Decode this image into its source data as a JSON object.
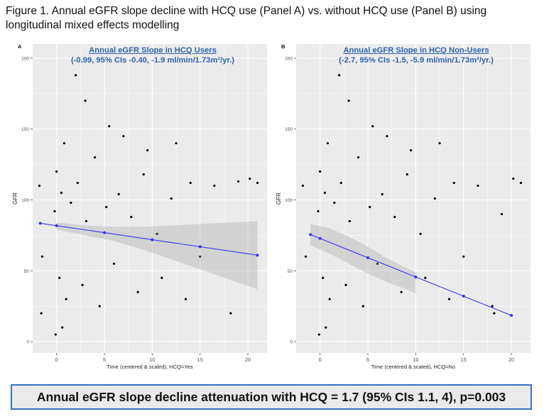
{
  "caption": "Figure 1. Annual eGFR slope decline with HCQ use (Panel A) vs. without HCQ use (Panel B) using longitudinal mixed effects modelling",
  "footer": "Annual eGFR slope decline attenuation with HCQ = 1.7 (95% CIs 1.1, 4), p=0.003",
  "colors": {
    "panel_bg": "#ebebeb",
    "grid": "#ffffff",
    "point": "#000000",
    "fit_line": "#3333ff",
    "ci_band": "#999999",
    "annotation": "#2c62b3",
    "footer_border": "#3b6fc2"
  },
  "chart_data": [
    {
      "type": "scatter",
      "panel_letter": "A",
      "annotation_line1": "Annual eGFR Slope in HCQ Users",
      "annotation_line2": "(-0.99, 95% CIs -0.40, -1.9 ml/min/1.73m²/yr.)",
      "xlabel": "Time (centered & scaled), HCQ=Yes",
      "ylabel": "GFR",
      "xlim": [
        -2.5,
        22
      ],
      "ylim": [
        -8,
        210
      ],
      "x_ticks": [
        0,
        5,
        10,
        15,
        20
      ],
      "y_ticks": [
        0,
        50,
        100,
        150,
        200
      ],
      "grid": true,
      "fit_line": {
        "x": [
          -1.7,
          21
        ],
        "y": [
          83.5,
          61.0
        ]
      },
      "fit_points": {
        "x": [
          -1.7,
          0,
          5,
          10,
          15,
          21
        ],
        "y": [
          83.5,
          81.8,
          76.9,
          71.9,
          67.0,
          61.0
        ]
      },
      "ci_band": {
        "x": [
          0,
          3,
          6,
          9,
          12,
          15,
          18,
          21
        ],
        "lower": [
          79,
          75,
          71,
          65,
          58,
          51,
          44,
          37
        ],
        "upper": [
          84,
          82,
          81,
          81,
          82,
          83,
          84,
          85
        ]
      },
      "scatter_points": [
        {
          "x": 0.0,
          "y": 120
        },
        {
          "x": 0.5,
          "y": 105
        },
        {
          "x": -0.2,
          "y": 92
        },
        {
          "x": 0.8,
          "y": 140
        },
        {
          "x": 1.5,
          "y": 98
        },
        {
          "x": 2.2,
          "y": 112
        },
        {
          "x": 3.1,
          "y": 85
        },
        {
          "x": 4.0,
          "y": 130
        },
        {
          "x": 5.2,
          "y": 95
        },
        {
          "x": 6.5,
          "y": 104
        },
        {
          "x": 7.8,
          "y": 88
        },
        {
          "x": 9.1,
          "y": 118
        },
        {
          "x": 10.5,
          "y": 76
        },
        {
          "x": 12.0,
          "y": 101
        },
        {
          "x": 14.0,
          "y": 112
        },
        {
          "x": 16.5,
          "y": 110
        },
        {
          "x": 18.2,
          "y": 20
        },
        {
          "x": 19.0,
          "y": 113
        },
        {
          "x": 20.2,
          "y": 115
        },
        {
          "x": 21.0,
          "y": 112
        },
        {
          "x": 0.3,
          "y": 45
        },
        {
          "x": 1.0,
          "y": 30
        },
        {
          "x": 2.7,
          "y": 40
        },
        {
          "x": 4.5,
          "y": 25
        },
        {
          "x": 6.0,
          "y": 55
        },
        {
          "x": 8.5,
          "y": 35
        },
        {
          "x": 11.0,
          "y": 45
        },
        {
          "x": 13.5,
          "y": 30
        },
        {
          "x": 0.6,
          "y": 10
        },
        {
          "x": -0.1,
          "y": 5
        },
        {
          "x": 2.0,
          "y": 188
        },
        {
          "x": 3.0,
          "y": 170
        },
        {
          "x": 5.5,
          "y": 152
        },
        {
          "x": 7.0,
          "y": 145
        },
        {
          "x": 9.5,
          "y": 135
        },
        {
          "x": 12.5,
          "y": 140
        },
        {
          "x": -1.8,
          "y": 110
        },
        {
          "x": -1.5,
          "y": 60
        },
        {
          "x": -1.6,
          "y": 20
        },
        {
          "x": 15.0,
          "y": 60
        }
      ]
    },
    {
      "type": "scatter",
      "panel_letter": "B",
      "annotation_line1": "Annual eGFR Slope in HCQ Non-Users",
      "annotation_line2": "(-2.7, 95% CIs -1.5, -5.9 ml/min/1.73m²/yr.)",
      "xlabel": "Time (centered & scaled), HCQ=No",
      "ylabel": "GFR",
      "xlim": [
        -2.5,
        22
      ],
      "ylim": [
        -8,
        210
      ],
      "x_ticks": [
        0,
        5,
        10,
        15,
        20
      ],
      "y_ticks": [
        0,
        50,
        100,
        150,
        200
      ],
      "grid": true,
      "fit_line": {
        "x": [
          -1.0,
          20
        ],
        "y": [
          75.5,
          18.5
        ]
      },
      "fit_points": {
        "x": [
          -1.0,
          0,
          5,
          10,
          15,
          20
        ],
        "y": [
          75.5,
          72.8,
          59.2,
          45.6,
          32.1,
          18.5
        ]
      },
      "ci_band": {
        "x": [
          -1,
          1,
          3,
          5,
          7,
          9,
          10
        ],
        "lower": [
          68,
          62,
          55,
          48,
          42,
          37,
          34
        ],
        "upper": [
          83,
          80,
          74,
          67,
          59,
          52,
          49
        ]
      },
      "scatter_points": [
        {
          "x": 0.0,
          "y": 120
        },
        {
          "x": 0.5,
          "y": 105
        },
        {
          "x": -0.2,
          "y": 92
        },
        {
          "x": 0.8,
          "y": 140
        },
        {
          "x": 1.5,
          "y": 98
        },
        {
          "x": 2.2,
          "y": 112
        },
        {
          "x": 3.1,
          "y": 85
        },
        {
          "x": 4.0,
          "y": 130
        },
        {
          "x": 5.2,
          "y": 95
        },
        {
          "x": 6.5,
          "y": 104
        },
        {
          "x": 7.8,
          "y": 88
        },
        {
          "x": 9.1,
          "y": 118
        },
        {
          "x": 10.5,
          "y": 76
        },
        {
          "x": 12.0,
          "y": 101
        },
        {
          "x": 14.0,
          "y": 112
        },
        {
          "x": 16.5,
          "y": 110
        },
        {
          "x": 18.2,
          "y": 20
        },
        {
          "x": 19.0,
          "y": 90
        },
        {
          "x": 20.2,
          "y": 115
        },
        {
          "x": 21.0,
          "y": 112
        },
        {
          "x": 0.3,
          "y": 45
        },
        {
          "x": 1.0,
          "y": 30
        },
        {
          "x": 2.7,
          "y": 40
        },
        {
          "x": 4.5,
          "y": 25
        },
        {
          "x": 6.0,
          "y": 55
        },
        {
          "x": 8.5,
          "y": 35
        },
        {
          "x": 11.0,
          "y": 45
        },
        {
          "x": 13.5,
          "y": 30
        },
        {
          "x": 0.6,
          "y": 10
        },
        {
          "x": -0.1,
          "y": 5
        },
        {
          "x": 2.0,
          "y": 188
        },
        {
          "x": 3.0,
          "y": 170
        },
        {
          "x": 5.5,
          "y": 152
        },
        {
          "x": 7.0,
          "y": 145
        },
        {
          "x": 9.5,
          "y": 135
        },
        {
          "x": 12.5,
          "y": 140
        },
        {
          "x": -1.8,
          "y": 110
        },
        {
          "x": -1.5,
          "y": 60
        },
        {
          "x": 15.0,
          "y": 60
        },
        {
          "x": 18.0,
          "y": 25
        }
      ]
    }
  ]
}
